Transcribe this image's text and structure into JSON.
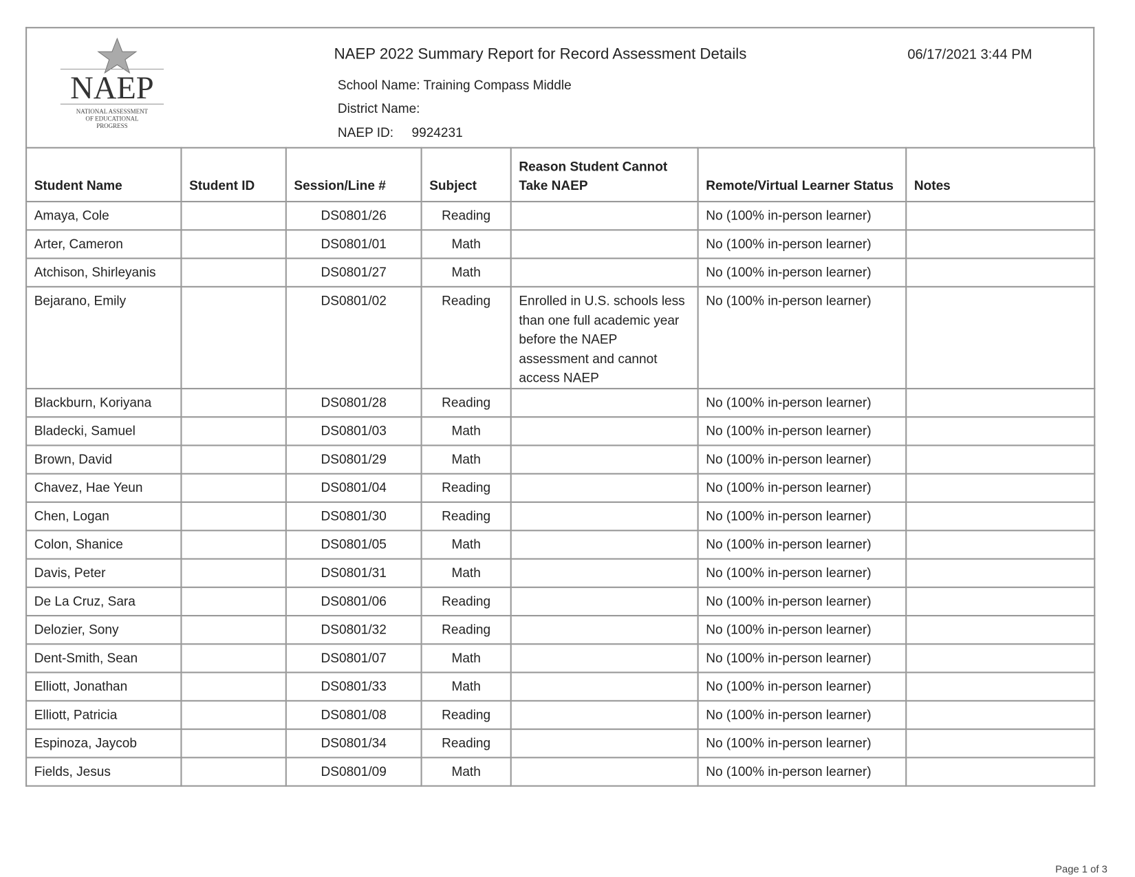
{
  "report": {
    "logo_text": "NAEP",
    "logo_subtitle": "NATIONAL ASSESSMENT OF EDUCATIONAL PROGRESS",
    "title": "NAEP 2022 Summary Report for Record Assessment  Details",
    "datetime": "06/17/2021   3:44 PM",
    "school_name": "School Name: Training Compass Middle",
    "district_name": "District Name:",
    "naep_id_label": "NAEP ID:",
    "naep_id": "9924231"
  },
  "table": {
    "columns": [
      "Student Name",
      "Student ID",
      "Session/Line #",
      "Subject",
      "Reason Student Cannot Take NAEP",
      "Remote/Virtual Learner Status",
      "Notes"
    ],
    "rows": [
      [
        "Amaya, Cole",
        "",
        "DS0801/26",
        "Reading",
        "",
        "No (100% in-person learner)",
        ""
      ],
      [
        "Arter, Cameron",
        "",
        "DS0801/01",
        "Math",
        "",
        "No (100% in-person learner)",
        ""
      ],
      [
        "Atchison, Shirleyanis",
        "",
        "DS0801/27",
        "Math",
        "",
        "No (100% in-person learner)",
        ""
      ],
      [
        "Bejarano, Emily",
        "",
        "DS0801/02",
        "Reading",
        "Enrolled in U.S. schools less than one full academic year before the NAEP assessment and cannot access NAEP",
        "No (100% in-person learner)",
        ""
      ],
      [
        "Blackburn, Koriyana",
        "",
        "DS0801/28",
        "Reading",
        "",
        "No (100% in-person learner)",
        ""
      ],
      [
        "Bladecki, Samuel",
        "",
        "DS0801/03",
        "Math",
        "",
        "No (100% in-person learner)",
        ""
      ],
      [
        "Brown, David",
        "",
        "DS0801/29",
        "Math",
        "",
        "No (100% in-person learner)",
        ""
      ],
      [
        "Chavez, Hae Yeun",
        "",
        "DS0801/04",
        "Reading",
        "",
        "No (100% in-person learner)",
        ""
      ],
      [
        "Chen, Logan",
        "",
        "DS0801/30",
        "Reading",
        "",
        "No (100% in-person learner)",
        ""
      ],
      [
        "Colon, Shanice",
        "",
        "DS0801/05",
        "Math",
        "",
        "No (100% in-person learner)",
        ""
      ],
      [
        "Davis, Peter",
        "",
        "DS0801/31",
        "Math",
        "",
        "No (100% in-person learner)",
        ""
      ],
      [
        "De La Cruz, Sara",
        "",
        "DS0801/06",
        "Reading",
        "",
        "No (100% in-person learner)",
        ""
      ],
      [
        "Delozier, Sony",
        "",
        "DS0801/32",
        "Reading",
        "",
        "No (100% in-person learner)",
        ""
      ],
      [
        "Dent-Smith, Sean",
        "",
        "DS0801/07",
        "Math",
        "",
        "No (100% in-person learner)",
        ""
      ],
      [
        "Elliott, Jonathan",
        "",
        "DS0801/33",
        "Math",
        "",
        "No (100% in-person learner)",
        ""
      ],
      [
        "Elliott, Patricia",
        "",
        "DS0801/08",
        "Reading",
        "",
        "No (100% in-person learner)",
        ""
      ],
      [
        "Espinoza, Jaycob",
        "",
        "DS0801/34",
        "Reading",
        "",
        "No (100% in-person learner)",
        ""
      ],
      [
        "Fields, Jesus",
        "",
        "DS0801/09",
        "Math",
        "",
        "No (100% in-person learner)",
        ""
      ]
    ]
  },
  "footer": {
    "page": "Page 1 of 3"
  }
}
